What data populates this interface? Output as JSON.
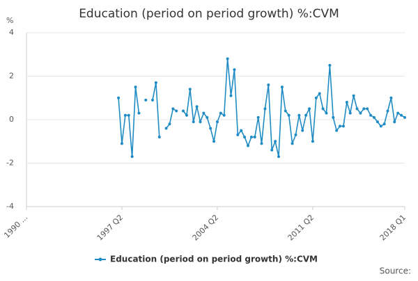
{
  "chart_data": {
    "type": "line",
    "title": "Education (period on period growth) %:CVM",
    "y_label": "%",
    "source": "Source:",
    "categories": [
      "1990 ...",
      null,
      null,
      null,
      null,
      null,
      null,
      null,
      null,
      null,
      null,
      null,
      null,
      null,
      null,
      null,
      null,
      null,
      null,
      null,
      null,
      null,
      null,
      null,
      null,
      null,
      null,
      null,
      "1997 Q2",
      null,
      null,
      null,
      null,
      null,
      null,
      null,
      null,
      null,
      null,
      null,
      null,
      null,
      null,
      null,
      null,
      null,
      null,
      null,
      null,
      null,
      null,
      null,
      null,
      null,
      null,
      null,
      "2004 Q2",
      null,
      null,
      null,
      null,
      null,
      null,
      null,
      null,
      null,
      null,
      null,
      null,
      null,
      null,
      null,
      null,
      null,
      null,
      null,
      null,
      null,
      null,
      null,
      null,
      null,
      null,
      null,
      "2011 Q2",
      null,
      null,
      null,
      null,
      null,
      null,
      null,
      null,
      null,
      null,
      null,
      null,
      null,
      null,
      null,
      null,
      null,
      null,
      null,
      null,
      null,
      null,
      null,
      null,
      null,
      null,
      "2018 Q1"
    ],
    "series": [
      {
        "name": "Education (period on period growth) %:CVM",
        "color": "#1f8bc4",
        "values": [
          null,
          null,
          null,
          null,
          null,
          null,
          null,
          null,
          null,
          null,
          null,
          null,
          null,
          null,
          null,
          null,
          null,
          null,
          null,
          null,
          null,
          null,
          null,
          null,
          null,
          null,
          null,
          1.0,
          -1.1,
          0.2,
          0.2,
          -1.7,
          1.5,
          0.3,
          null,
          0.9,
          null,
          0.9,
          1.7,
          -0.8,
          null,
          -0.4,
          -0.2,
          0.5,
          0.4,
          null,
          0.4,
          0.2,
          1.4,
          -0.1,
          0.6,
          -0.1,
          0.3,
          0.1,
          -0.4,
          -1.0,
          -0.1,
          0.3,
          0.2,
          2.8,
          1.1,
          2.3,
          -0.7,
          -0.5,
          -0.8,
          -1.2,
          -0.8,
          -0.8,
          0.1,
          -1.1,
          0.5,
          1.6,
          -1.4,
          -1.0,
          -1.7,
          1.5,
          0.4,
          0.2,
          -1.1,
          -0.7,
          0.2,
          -0.5,
          0.2,
          0.5,
          -1.0,
          1.0,
          1.2,
          0.5,
          0.3,
          2.5,
          0.1,
          -0.5,
          -0.3,
          -0.3,
          0.8,
          0.3,
          1.1,
          0.5,
          0.3,
          0.5,
          0.5,
          0.2,
          0.1,
          -0.1,
          -0.3,
          -0.2,
          0.4,
          1.0,
          -0.1,
          0.3,
          0.2,
          0.1
        ]
      }
    ],
    "ylim": [
      -4,
      4
    ],
    "yticks": [
      -4,
      -2,
      0,
      2,
      4
    ],
    "grid": true
  }
}
